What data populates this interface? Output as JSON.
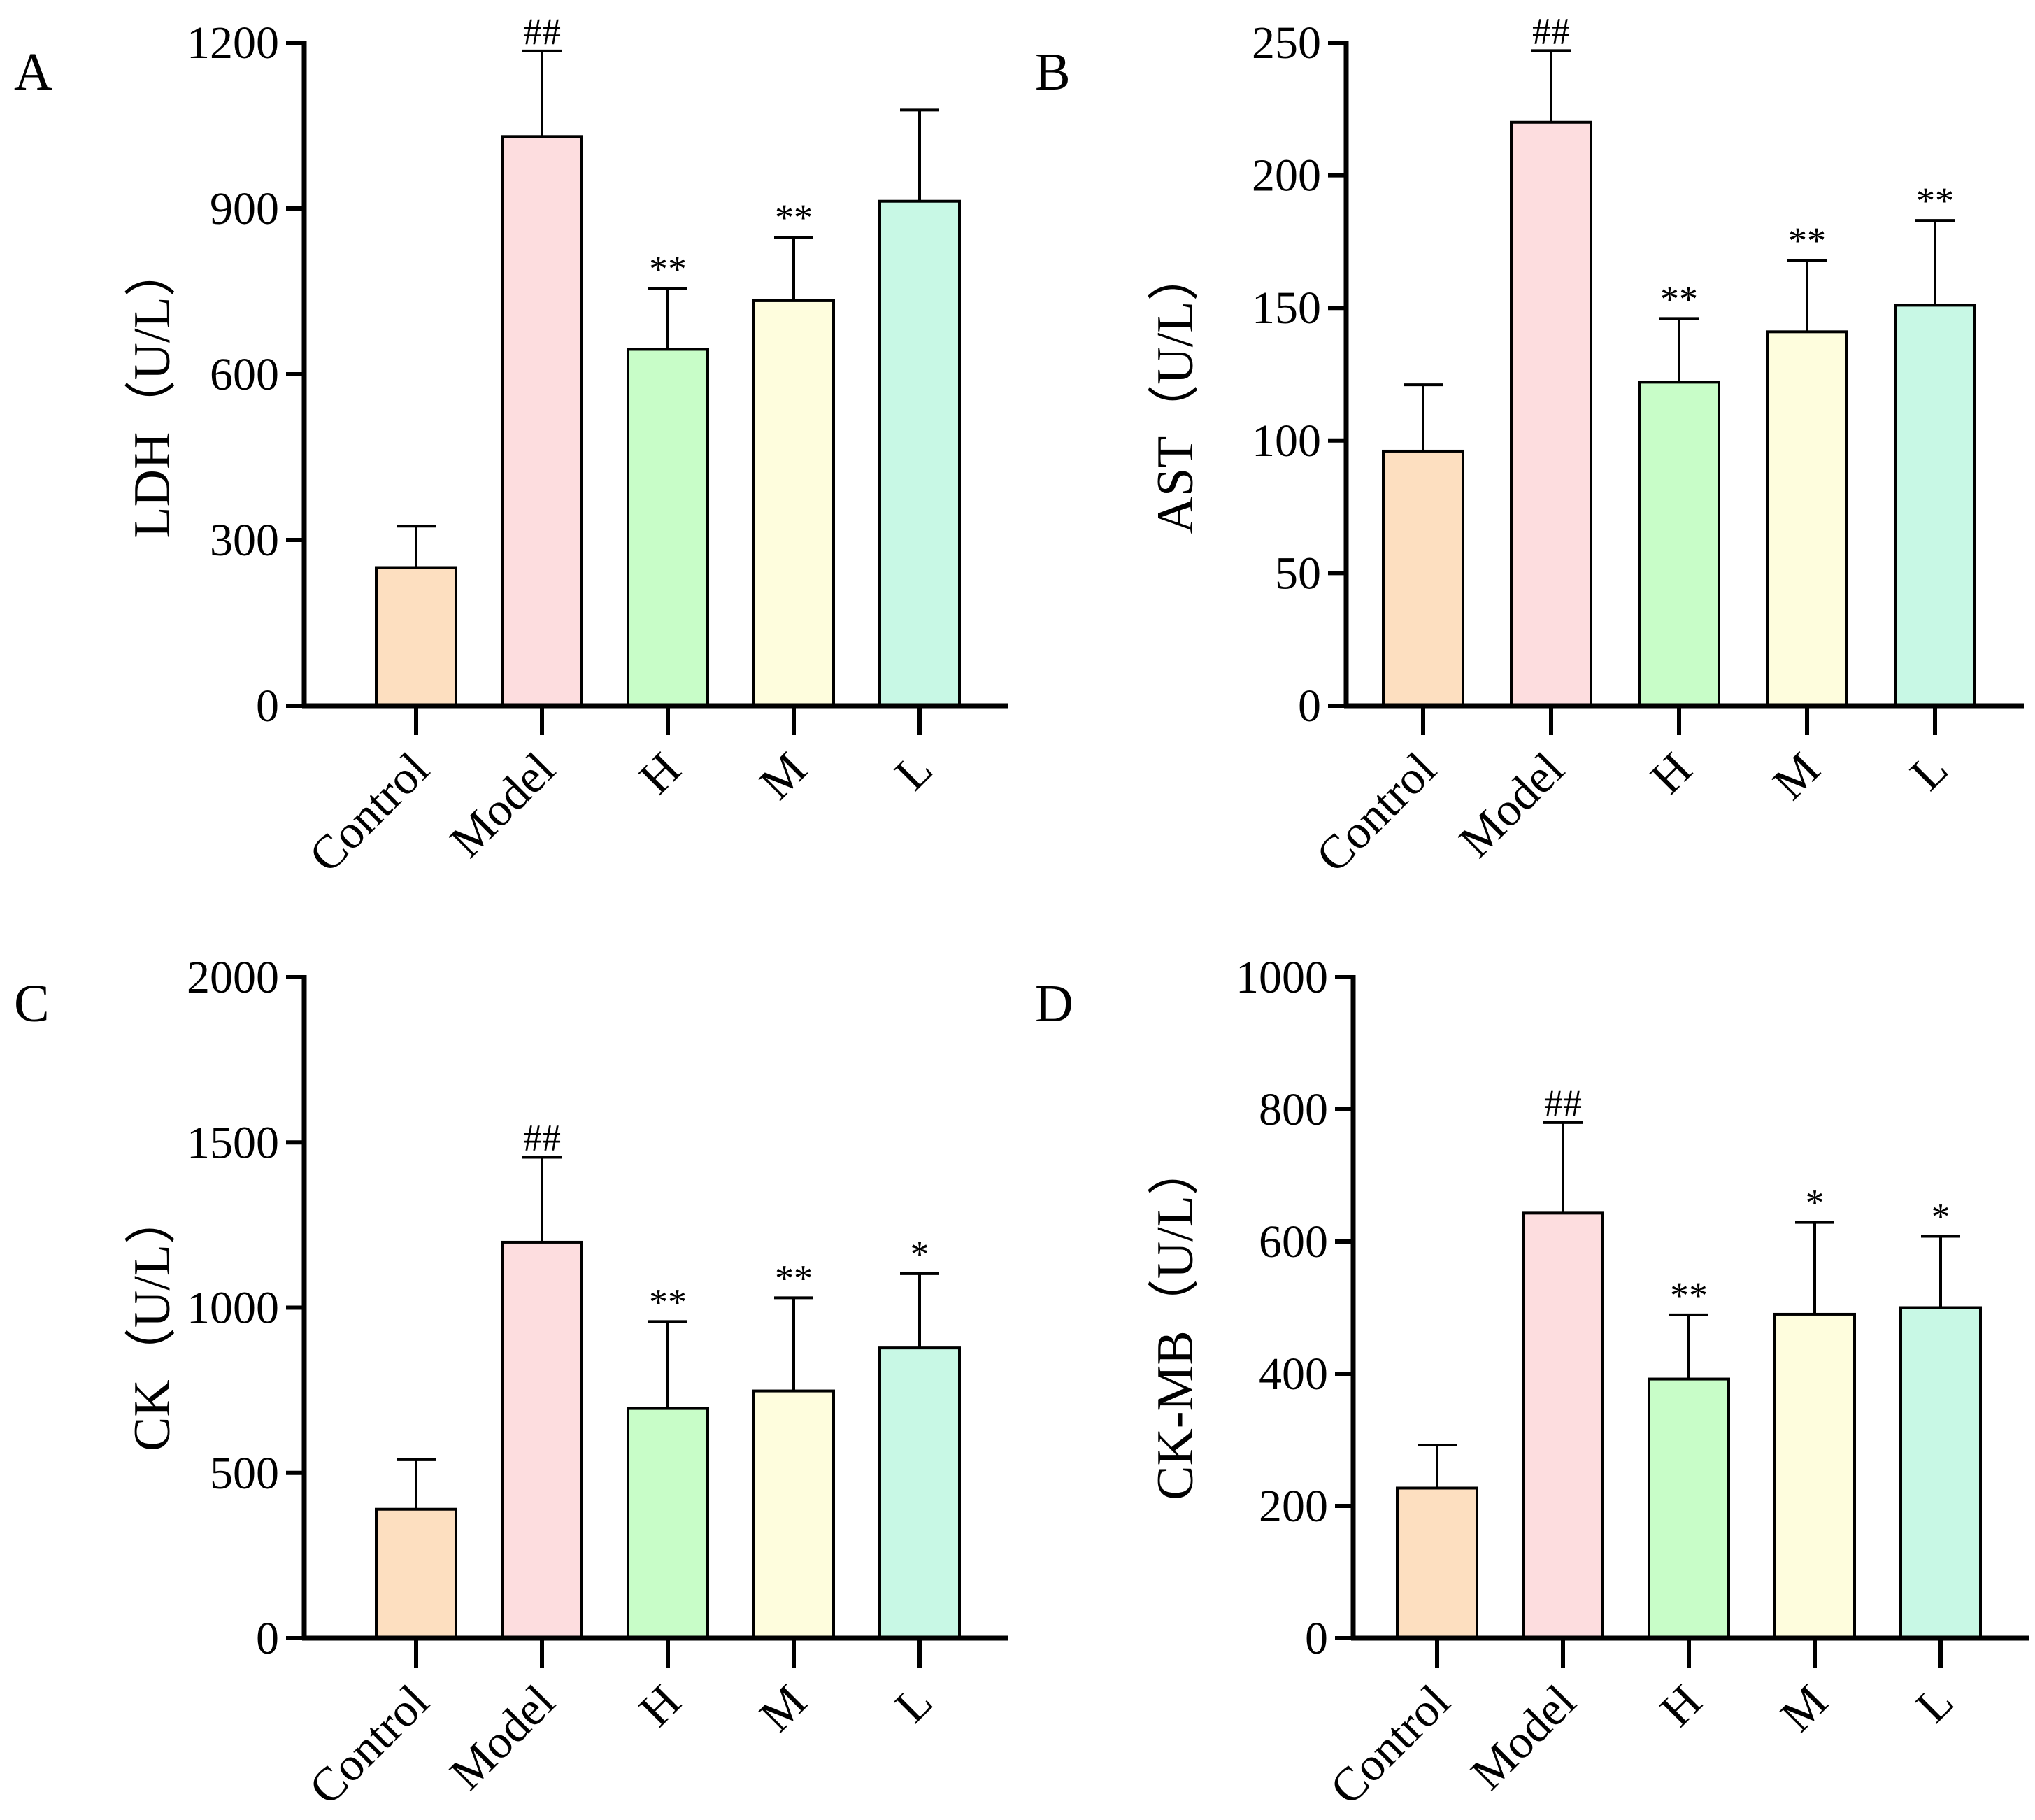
{
  "figure": {
    "categories": [
      "Control",
      "Model",
      "H",
      "M",
      "L"
    ],
    "bar_colors": [
      "#FDDFC0",
      "#FDDDDF",
      "#C8FDC8",
      "#FEFDDD",
      "#C8F8E5"
    ]
  },
  "chart_data": [
    {
      "type": "bar",
      "panel_label": "A",
      "ylabel": "LDH（U/L）",
      "categories": [
        "Control",
        "Model",
        "H",
        "M",
        "L"
      ],
      "values": [
        250,
        1030,
        645,
        733,
        913
      ],
      "errors": [
        75,
        155,
        110,
        115,
        165
      ],
      "significance": [
        "",
        "##",
        "**",
        "**",
        ""
      ],
      "ylim": [
        0,
        1200
      ],
      "yticks": [
        0,
        300,
        600,
        900,
        1200
      ],
      "ytick_labels": [
        "0",
        "300",
        "600",
        "900",
        "1200"
      ]
    },
    {
      "type": "bar",
      "panel_label": "B",
      "ylabel": "AST（U/L）",
      "categories": [
        "Control",
        "Model",
        "H",
        "M",
        "L"
      ],
      "values": [
        96,
        220,
        122,
        141,
        151
      ],
      "errors": [
        25,
        27,
        24,
        27,
        32
      ],
      "significance": [
        "",
        "##",
        "**",
        "**",
        "**"
      ],
      "ylim": [
        0,
        250
      ],
      "yticks": [
        0,
        50,
        100,
        150,
        200,
        250
      ],
      "ytick_labels": [
        "0",
        "50",
        "100",
        "150",
        "200",
        "250"
      ]
    },
    {
      "type": "bar",
      "panel_label": "C",
      "ylabel": "CK（U/L）",
      "categories": [
        "Control",
        "Model",
        "H",
        "M",
        "L"
      ],
      "values": [
        390,
        1198,
        695,
        748,
        878
      ],
      "errors": [
        150,
        257,
        263,
        282,
        225
      ],
      "significance": [
        "",
        "##",
        "**",
        "**",
        "*"
      ],
      "ylim": [
        0,
        2000
      ],
      "yticks": [
        0,
        500,
        1000,
        1500,
        2000
      ],
      "ytick_labels": [
        "0",
        "500",
        "1000",
        "1500",
        "2000"
      ]
    },
    {
      "type": "bar",
      "panel_label": "D",
      "ylabel": "CK-MB（U/L）",
      "categories": [
        "Control",
        "Model",
        "H",
        "M",
        "L"
      ],
      "values": [
        227,
        643,
        392,
        490,
        500
      ],
      "errors": [
        65,
        137,
        97,
        139,
        108
      ],
      "significance": [
        "",
        "##",
        "**",
        "*",
        "*"
      ],
      "ylim": [
        0,
        1000
      ],
      "yticks": [
        0,
        200,
        400,
        600,
        800,
        1000
      ],
      "ytick_labels": [
        "0",
        "200",
        "400",
        "600",
        "800",
        "1000"
      ]
    }
  ]
}
